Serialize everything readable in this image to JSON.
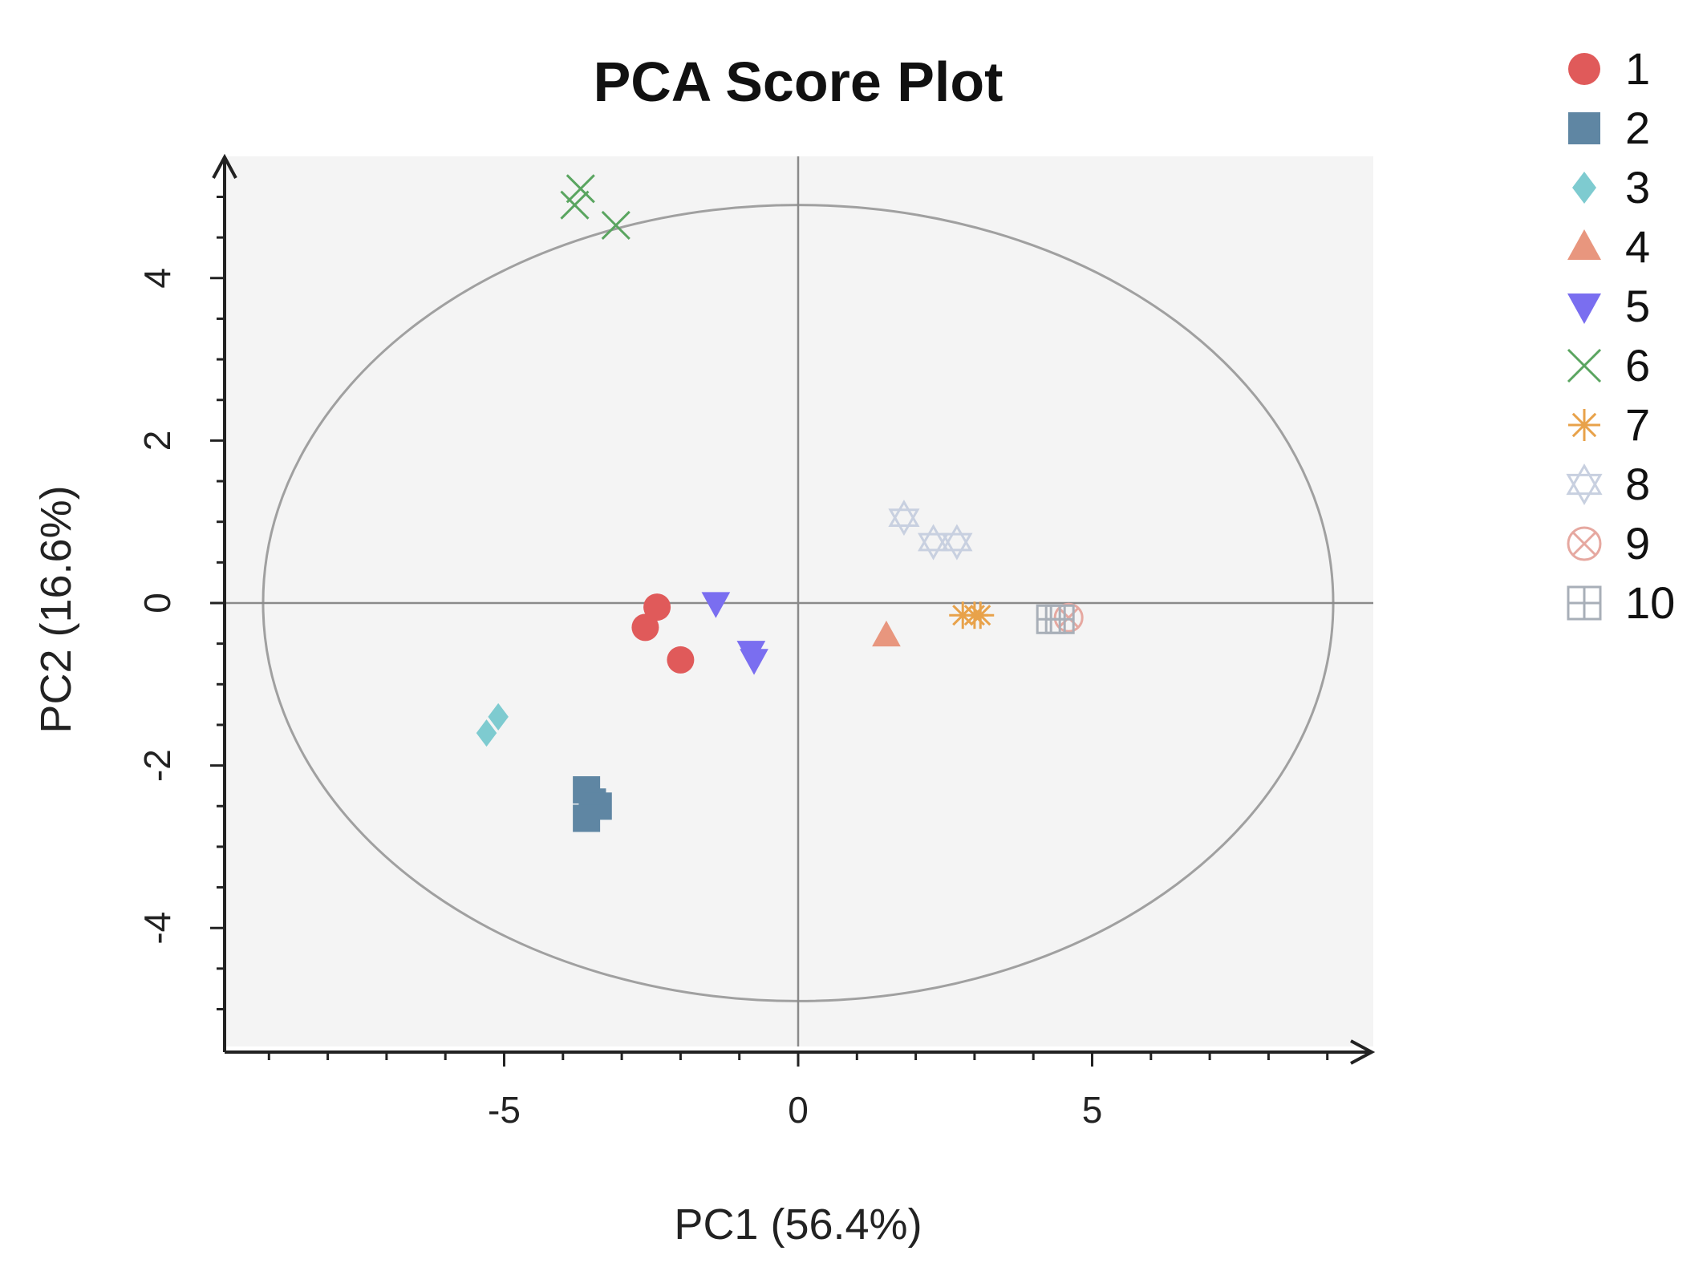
{
  "chart_data": {
    "type": "scatter",
    "title": "PCA Score Plot",
    "xlabel": "PC1 (56.4%)",
    "ylabel": "PC2 (16.6%)",
    "xlim": [
      -9.8,
      9.8
    ],
    "ylim": [
      -5.5,
      5.5
    ],
    "xticks": [
      -5,
      0,
      5
    ],
    "xtick_labels": [
      "-5",
      "0",
      "5"
    ],
    "yticks": [
      -4,
      -2,
      0,
      2,
      4
    ],
    "ytick_labels": [
      "-4",
      "-2",
      "0",
      "2",
      "4"
    ],
    "grid": false,
    "legend_position": "right",
    "confidence_ellipse": {
      "center": [
        0,
        0
      ],
      "rx": 9.1,
      "ry": 4.9,
      "color": "#a0a0a0"
    },
    "series": [
      {
        "name": "1",
        "marker": "circle",
        "color": "#e05a5a",
        "points": [
          [
            -2.4,
            -0.05
          ],
          [
            -2.6,
            -0.3
          ],
          [
            -2.0,
            -0.7
          ]
        ]
      },
      {
        "name": "2",
        "marker": "square",
        "color": "#5f86a3",
        "points": [
          [
            -3.6,
            -2.3
          ],
          [
            -3.5,
            -2.45
          ],
          [
            -3.4,
            -2.5
          ],
          [
            -3.6,
            -2.65
          ]
        ]
      },
      {
        "name": "3",
        "marker": "diamond",
        "color": "#7ecbd0",
        "points": [
          [
            -5.1,
            -1.4
          ],
          [
            -5.3,
            -1.6
          ]
        ]
      },
      {
        "name": "4",
        "marker": "triangle-up",
        "color": "#e8967e",
        "points": [
          [
            1.5,
            -0.4
          ]
        ]
      },
      {
        "name": "5",
        "marker": "triangle-down",
        "color": "#7a6ef0",
        "points": [
          [
            -1.4,
            0.0
          ],
          [
            -0.8,
            -0.6
          ],
          [
            -0.75,
            -0.7
          ]
        ]
      },
      {
        "name": "6",
        "marker": "x",
        "color": "#5aa560",
        "points": [
          [
            -3.7,
            5.1
          ],
          [
            -3.8,
            4.9
          ],
          [
            -3.1,
            4.65
          ]
        ]
      },
      {
        "name": "7",
        "marker": "asterisk",
        "color": "#e8a24a",
        "points": [
          [
            2.8,
            -0.15
          ],
          [
            3.0,
            -0.15
          ],
          [
            3.1,
            -0.15
          ]
        ]
      },
      {
        "name": "8",
        "marker": "hexagram",
        "color": "#c8d0e0",
        "points": [
          [
            1.8,
            1.05
          ],
          [
            2.3,
            0.75
          ],
          [
            2.7,
            0.75
          ]
        ]
      },
      {
        "name": "9",
        "marker": "circle-x",
        "color": "#e6a8a0",
        "points": [
          [
            4.6,
            -0.18
          ]
        ]
      },
      {
        "name": "10",
        "marker": "square-plus",
        "color": "#a8afb8",
        "points": [
          [
            4.3,
            -0.2
          ],
          [
            4.45,
            -0.2
          ]
        ]
      }
    ]
  }
}
